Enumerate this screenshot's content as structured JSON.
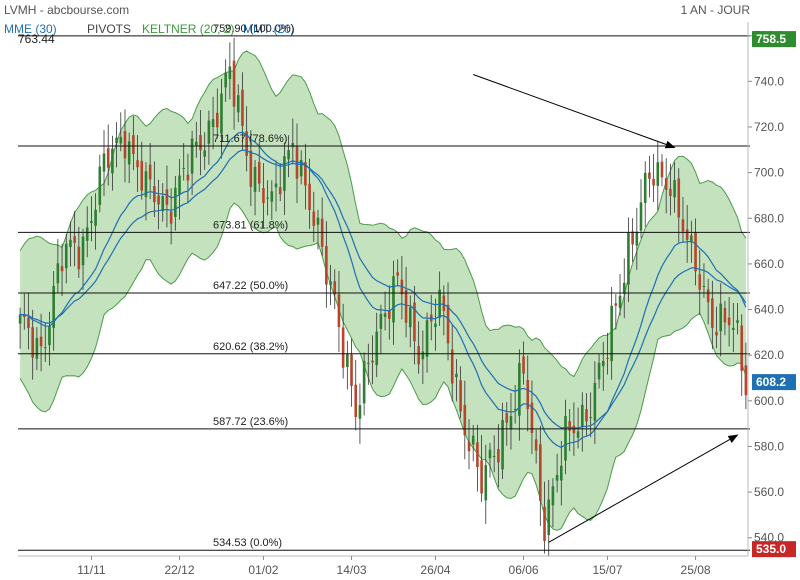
{
  "header": {
    "source": "LVMH - abcbourse.com",
    "period": "1 AN - JOUR"
  },
  "legend": [
    {
      "label": "MME (30)",
      "color": "#1f6fb4"
    },
    {
      "label": "PIVOTS",
      "color": "#444444"
    },
    {
      "label": "KELTNER (20, 2)",
      "color": "#3a9a3a"
    },
    {
      "label": "MMT (20)",
      "color": "#1f6fb4"
    }
  ],
  "colors": {
    "up_candle": "#2e7d32",
    "down_candle": "#b5452c",
    "keltner_fill": "#b9ddb1",
    "keltner_line": "#4c9a4c",
    "ma_line": "#1f6fb4",
    "fib_line": "#111111",
    "green_tag": "#2e8b2e",
    "blue_tag": "#1f6fb4",
    "red_tag": "#c62828"
  },
  "chart_data": {
    "type": "candlestick",
    "instrument": "LVMH",
    "period": "1 AN - JOUR",
    "x_tick_labels": [
      "11/11",
      "22/12",
      "01/02",
      "14/03",
      "26/04",
      "06/06",
      "15/07",
      "25/08"
    ],
    "y_tick_labels": [
      "540.0",
      "560.0",
      "580.0",
      "600.0",
      "620.0",
      "640.0",
      "660.0",
      "680.0",
      "700.0",
      "720.0",
      "740.0",
      "760.0"
    ],
    "ylim": [
      532,
      766
    ],
    "price_tags": [
      {
        "name": "high",
        "value": "758.5",
        "color": "green"
      },
      {
        "name": "last",
        "value": "608.2",
        "color": "blue"
      },
      {
        "name": "low",
        "value": "535.0",
        "color": "red"
      }
    ],
    "max_label": "763.44",
    "fibonacci": [
      {
        "price": 759.9,
        "label": "759.90  (100.0%)"
      },
      {
        "price": 711.67,
        "label": "711.67  (78.6%)"
      },
      {
        "price": 673.81,
        "label": "673.81  (61.8%)"
      },
      {
        "price": 647.22,
        "label": "647.22  (50.0%)"
      },
      {
        "price": 620.62,
        "label": "620.62  (38.2%)"
      },
      {
        "price": 587.72,
        "label": "587.72  (23.6%)"
      },
      {
        "price": 534.53,
        "label": "534.53  (0.0%)"
      }
    ],
    "trend_arrows": [
      {
        "from": {
          "i": 108,
          "y": 743
        },
        "to": {
          "i": 156,
          "y": 711
        }
      },
      {
        "from": {
          "i": 126,
          "y": 538
        },
        "to": {
          "i": 171,
          "y": 585
        }
      }
    ],
    "anchors": [
      [
        0,
        630
      ],
      [
        5,
        625
      ],
      [
        10,
        660
      ],
      [
        15,
        672
      ],
      [
        20,
        700
      ],
      [
        25,
        720
      ],
      [
        30,
        690
      ],
      [
        35,
        688
      ],
      [
        40,
        700
      ],
      [
        45,
        722
      ],
      [
        50,
        740
      ],
      [
        55,
        705
      ],
      [
        60,
        682
      ],
      [
        65,
        718
      ],
      [
        70,
        675
      ],
      [
        75,
        648
      ],
      [
        80,
        590
      ],
      [
        85,
        635
      ],
      [
        90,
        648
      ],
      [
        95,
        625
      ],
      [
        100,
        640
      ],
      [
        105,
        600
      ],
      [
        110,
        560
      ],
      [
        115,
        590
      ],
      [
        120,
        608
      ],
      [
        125,
        550
      ],
      [
        130,
        580
      ],
      [
        135,
        598
      ],
      [
        140,
        620
      ],
      [
        145,
        670
      ],
      [
        150,
        695
      ],
      [
        155,
        700
      ],
      [
        160,
        660
      ],
      [
        165,
        640
      ],
      [
        170,
        630
      ],
      [
        173,
        608
      ]
    ],
    "n_candles": 174,
    "keltner_width": 28,
    "mm_periods": [
      20,
      30
    ]
  }
}
